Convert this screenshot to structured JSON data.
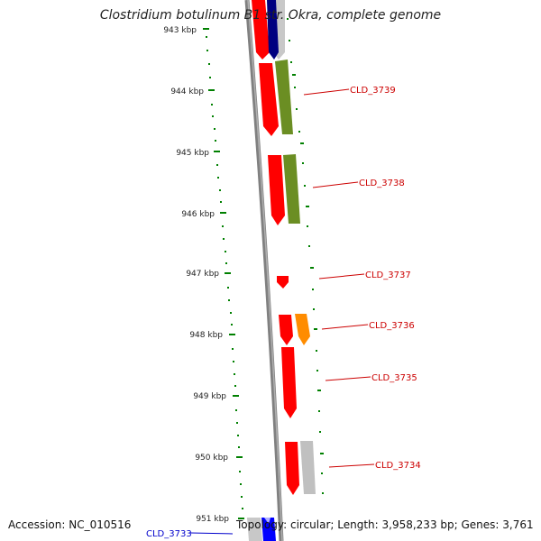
{
  "title": "Clostridium botulinum B1 str. Okra, complete genome",
  "accession": "Accession: NC_010516",
  "topology": "Topology: circular; Length: 3,958,233 bp; Genes: 3,761",
  "kbp_labels": [
    "943 kbp",
    "944 kbp",
    "945 kbp",
    "946 kbp",
    "947 kbp",
    "948 kbp",
    "949 kbp",
    "950 kbp",
    "951 kbp"
  ],
  "gene_labels": [
    "CLD_3739",
    "CLD_3738",
    "CLD_3737",
    "CLD_3736",
    "CLD_3735",
    "CLD_3734",
    "CLD_3733"
  ],
  "colors": {
    "backbone": "#808080",
    "cds_red": "#ff0000",
    "cog_olive": "#6b8e23",
    "cog_orange": "#ff8c00",
    "cog_gray": "#c0c0c0",
    "cog_navy": "#000080",
    "cog_blue": "#0000ff",
    "label_red": "#cc0000",
    "label_blue": "#0000cc",
    "tick_green": "#008000"
  }
}
